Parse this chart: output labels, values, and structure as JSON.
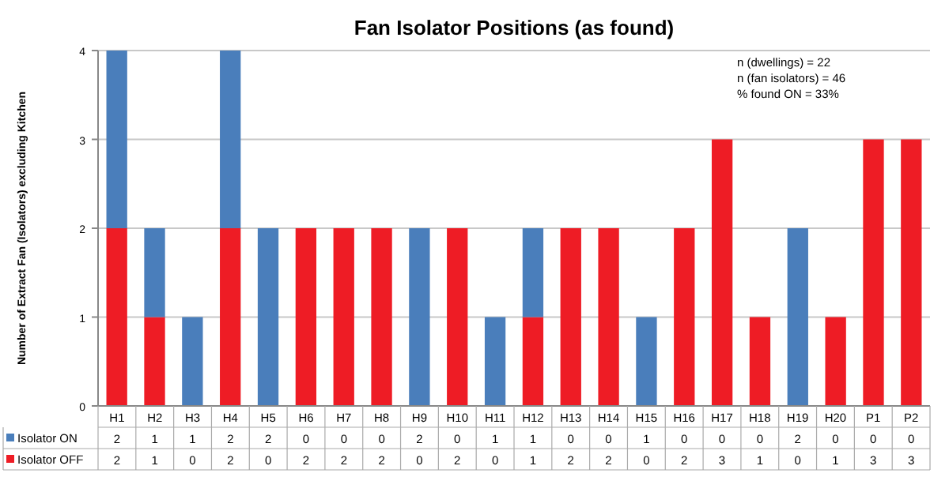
{
  "chart_data": {
    "type": "bar",
    "stacked": true,
    "title": "Fan Isolator Positions (as found)",
    "ylabel": "Number of Extract Fan (Isolators) excluding Kitchen",
    "categories": [
      "H1",
      "H2",
      "H3",
      "H4",
      "H5",
      "H6",
      "H7",
      "H8",
      "H9",
      "H10",
      "H11",
      "H12",
      "H13",
      "H14",
      "H15",
      "H16",
      "H17",
      "H18",
      "H19",
      "H20",
      "P1",
      "P2"
    ],
    "series": [
      {
        "name": "Isolator OFF",
        "color": "#ee1c25",
        "values": [
          2,
          1,
          0,
          2,
          0,
          2,
          2,
          2,
          0,
          2,
          0,
          1,
          2,
          2,
          0,
          2,
          3,
          1,
          0,
          1,
          3,
          3
        ]
      },
      {
        "name": "Isolator ON",
        "color": "#4a7ebb",
        "values": [
          2,
          1,
          1,
          2,
          2,
          0,
          0,
          0,
          2,
          0,
          1,
          1,
          0,
          0,
          1,
          0,
          0,
          0,
          2,
          0,
          0,
          0
        ]
      }
    ],
    "ylim": [
      0,
      4
    ],
    "yticks": [
      0,
      1,
      2,
      3,
      4
    ],
    "grid": "y",
    "legend": "bottom",
    "data_labels": true,
    "annotations": [
      "n (dwellings) = 22",
      "n (fan isolators) = 46",
      "% found ON = 33%"
    ]
  }
}
